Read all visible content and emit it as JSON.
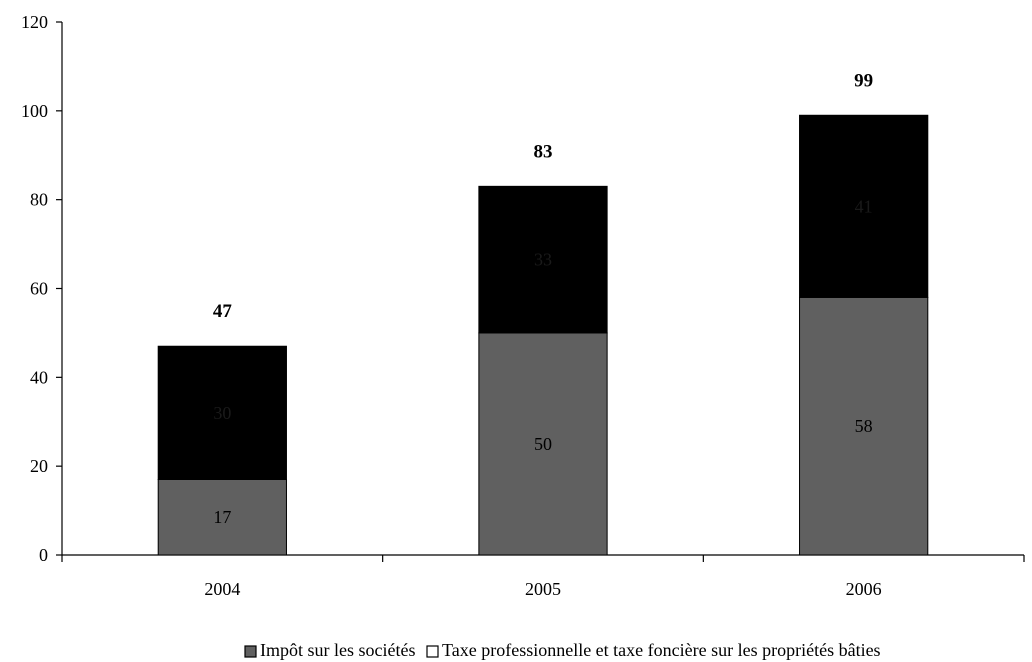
{
  "chart_data": {
    "type": "bar",
    "stacked": true,
    "categories": [
      "2004",
      "2005",
      "2006"
    ],
    "series": [
      {
        "name": "Impôt sur les sociétés",
        "values": [
          17,
          50,
          58
        ],
        "color": "#606060",
        "label_color": "#000000"
      },
      {
        "name": "Taxe professionnelle et taxe foncière sur les propriétés bâties",
        "values": [
          30,
          33,
          41
        ],
        "color": "#000000",
        "label_color": "#1a1a1a"
      }
    ],
    "totals": [
      "47",
      "83",
      "99"
    ],
    "title": "",
    "xlabel": "",
    "ylabel": "",
    "ylim": [
      0,
      120
    ],
    "yticks": [
      "0",
      "20",
      "40",
      "60",
      "80",
      "100",
      "120"
    ],
    "grid": false,
    "legend_position": "bottom"
  }
}
